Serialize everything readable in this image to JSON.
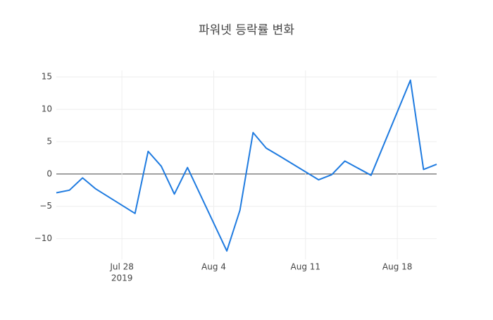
{
  "chart_data": {
    "type": "line",
    "title": "파워넷 등락률 변화",
    "x": [
      "2019-07-23",
      "2019-07-24",
      "2019-07-25",
      "2019-07-26",
      "2019-07-29",
      "2019-07-30",
      "2019-07-31",
      "2019-08-01",
      "2019-08-02",
      "2019-08-05",
      "2019-08-06",
      "2019-08-07",
      "2019-08-08",
      "2019-08-09",
      "2019-08-12",
      "2019-08-13",
      "2019-08-14",
      "2019-08-16",
      "2019-08-19",
      "2019-08-20",
      "2019-08-21"
    ],
    "series": [
      {
        "color": "#1f7be0",
        "values": [
          -2.9,
          -2.5,
          -0.6,
          -2.3,
          -6.1,
          3.5,
          1.2,
          -3.1,
          1.0,
          -11.9,
          -5.6,
          6.4,
          4.0,
          2.8,
          -0.9,
          -0.1,
          2.0,
          -0.2,
          14.5,
          0.7,
          1.5
        ]
      }
    ],
    "xlim": [
      "2019-07-23",
      "2019-08-21"
    ],
    "xticks": [
      {
        "value": "2019-07-28",
        "label": "Jul 28"
      },
      {
        "value": "2019-08-04",
        "label": "Aug 4"
      },
      {
        "value": "2019-08-11",
        "label": "Aug 11"
      },
      {
        "value": "2019-08-18",
        "label": "Aug 18"
      }
    ],
    "x_year_label": "2019",
    "ylim": [
      -13.2,
      16
    ],
    "yticks": [
      {
        "value": -10,
        "label": "−10"
      },
      {
        "value": -5,
        "label": "−5"
      },
      0,
      5,
      10,
      15
    ],
    "grid": true
  }
}
